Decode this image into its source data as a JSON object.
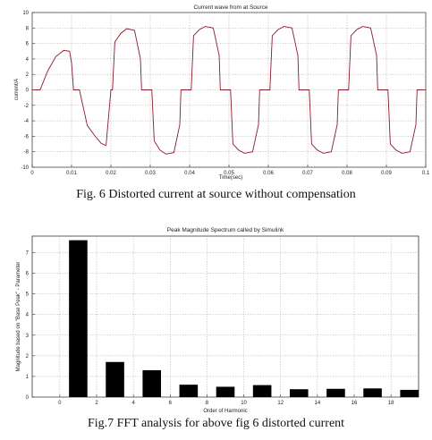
{
  "figures": {
    "fig6": {
      "caption": "Fig. 6 Distorted current at source without compensation"
    },
    "fig7": {
      "caption": "Fig.7 FFT analysis for above fig 6 distorted current"
    }
  },
  "chart_data": [
    {
      "type": "line",
      "title": "Current wave from at Source",
      "xlabel": "Time(sec)",
      "ylabel": "current/A",
      "xlim": [
        0,
        0.1
      ],
      "ylim": [
        -10,
        10
      ],
      "xticks": [
        "0",
        "0.01",
        "0.02",
        "0.03",
        "0.04",
        "0.05",
        "0.06",
        "0.07",
        "0.08",
        "0.09",
        "0.1"
      ],
      "yticks": [
        "10",
        "8",
        "6",
        "4",
        "2",
        "0",
        "-2",
        "-4",
        "-6",
        "-8",
        "-10"
      ],
      "grid": true,
      "series": [
        {
          "color": "#8b1a2b",
          "x": [
            0,
            0.002,
            0.004,
            0.006,
            0.008,
            0.0095,
            0.01,
            0.0105,
            0.0107,
            0.012,
            0.014,
            0.016,
            0.0175,
            0.0187,
            0.0188,
            0.02,
            0.0202,
            0.0204,
            0.021,
            0.0225,
            0.024,
            0.026,
            0.0275,
            0.0278,
            0.029,
            0.0302,
            0.0304,
            0.031,
            0.0325,
            0.034,
            0.036,
            0.0375,
            0.0378,
            0.039,
            0.0402,
            0.0404,
            0.041,
            0.0425,
            0.044,
            0.046,
            0.0475,
            0.0478,
            0.049,
            0.0502,
            0.0504,
            0.051,
            0.0525,
            0.054,
            0.056,
            0.0575,
            0.0578,
            0.059,
            0.0602,
            0.0604,
            0.061,
            0.0625,
            0.064,
            0.066,
            0.0675,
            0.0678,
            0.069,
            0.0702,
            0.0704,
            0.071,
            0.0725,
            0.074,
            0.076,
            0.0775,
            0.0778,
            0.079,
            0.0802,
            0.0804,
            0.081,
            0.0825,
            0.084,
            0.086,
            0.0875,
            0.0878,
            0.089,
            0.0902,
            0.0904,
            0.091,
            0.0925,
            0.094,
            0.096,
            0.0975,
            0.0978,
            0.099,
            0.1
          ],
          "y": [
            0,
            0,
            2.5,
            4.3,
            5.1,
            5.0,
            3.5,
            0,
            0,
            0,
            -4.6,
            -6.0,
            -6.9,
            -7.2,
            -7.0,
            0,
            0,
            0,
            6.2,
            7.3,
            7.9,
            7.7,
            4.0,
            0,
            0,
            0,
            0,
            -6.6,
            -7.8,
            -8.3,
            -8.1,
            -4.5,
            0,
            0,
            0,
            0,
            7.0,
            7.8,
            8.2,
            8.0,
            4.5,
            0,
            0,
            0,
            0,
            -7.0,
            -7.8,
            -8.2,
            -8.0,
            -4.5,
            0,
            0,
            0,
            0,
            7.0,
            7.8,
            8.2,
            8.0,
            4.5,
            0,
            0,
            0,
            0,
            -7.0,
            -7.8,
            -8.2,
            -8.0,
            -4.5,
            0,
            0,
            0,
            0,
            7.0,
            7.8,
            8.2,
            8.0,
            4.5,
            0,
            0,
            0,
            0,
            -7.0,
            -7.8,
            -8.2,
            -8.0,
            -4.5,
            0,
            0,
            0
          ]
        }
      ]
    },
    {
      "type": "bar",
      "title": "Peak Magnitude Spectrum called by Simulink",
      "xlabel": "Order of Harmonic",
      "ylabel": "Magnitude based on \"Base Peak\" - Parameter",
      "xlim": [
        -1.5,
        19.5
      ],
      "ylim": [
        0,
        7.8
      ],
      "xticks": [
        "0",
        "2",
        "4",
        "6",
        "8",
        "10",
        "12",
        "14",
        "16",
        "18"
      ],
      "yticks": [
        "0",
        "1",
        "2",
        "3",
        "4",
        "5",
        "6",
        "7"
      ],
      "categories": [
        1,
        3,
        5,
        7,
        9,
        11,
        13,
        15,
        17,
        19
      ],
      "values": [
        7.6,
        1.7,
        1.3,
        0.6,
        0.5,
        0.58,
        0.38,
        0.4,
        0.42,
        0.35
      ],
      "color": "#000000"
    }
  ]
}
